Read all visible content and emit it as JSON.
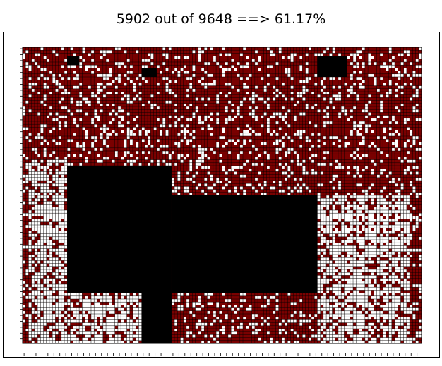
{
  "chart_data": {
    "type": "heatmap",
    "title": "5902 out of 9648 ==> 61.17%",
    "xlabel": "",
    "ylabel": "",
    "grid": true,
    "colors": {
      "background": "#ffffff",
      "frame": "#000000",
      "covered_cell": "#7a0000",
      "wall": "#000000",
      "open_cell": "#ffffff",
      "grid_line": "#000000"
    },
    "summary": {
      "covered": 5902,
      "total": 9648,
      "percent": 61.17
    },
    "grid_size": {
      "cols": 134,
      "rows": 100
    },
    "wall_blocks": [
      {
        "col0": 15,
        "col1": 19,
        "row0": 3,
        "row1": 6
      },
      {
        "col0": 40,
        "col1": 45,
        "row0": 7,
        "row1": 10
      },
      {
        "col0": 99,
        "col1": 109,
        "row0": 3,
        "row1": 10
      },
      {
        "col0": 15,
        "col1": 50,
        "row0": 40,
        "row1": 83
      },
      {
        "col0": 50,
        "col1": 99,
        "row0": 50,
        "row1": 83
      },
      {
        "col0": 40,
        "col1": 50,
        "row0": 83,
        "row1": 100
      }
    ],
    "open_regions": [
      {
        "col0": 2,
        "col1": 15,
        "row0": 38,
        "row1": 100
      },
      {
        "col0": 15,
        "col1": 40,
        "row0": 83,
        "row1": 100
      },
      {
        "col0": 99,
        "col1": 130,
        "row0": 50,
        "row1": 100
      }
    ]
  }
}
